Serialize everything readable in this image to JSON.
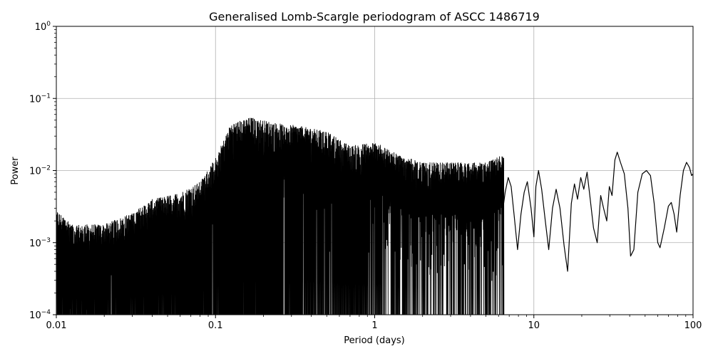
{
  "chart_data": {
    "type": "line",
    "title": "Generalised Lomb-Scargle periodogram of ASCC 1486719",
    "xlabel": "Period (days)",
    "ylabel": "Power",
    "x_scale": "log",
    "y_scale": "log",
    "xlim": [
      0.01,
      100
    ],
    "ylim": [
      0.0001,
      1
    ],
    "grid": true,
    "x_major_ticks": [
      {
        "value": 0.01,
        "label": "0.01"
      },
      {
        "value": 0.1,
        "label": "0.1"
      },
      {
        "value": 1,
        "label": "1"
      },
      {
        "value": 10,
        "label": "10"
      },
      {
        "value": 100,
        "label": "100"
      }
    ],
    "y_major_ticks": [
      {
        "value": 0.0001,
        "base": "10",
        "exp": "−4"
      },
      {
        "value": 0.001,
        "base": "10",
        "exp": "−3"
      },
      {
        "value": 0.01,
        "base": "10",
        "exp": "−2"
      },
      {
        "value": 0.1,
        "base": "10",
        "exp": "−1"
      },
      {
        "value": 1,
        "base": "10",
        "exp": "0"
      }
    ],
    "line_color": "#000000",
    "envelope": [
      {
        "period": 0.01,
        "max_power": 0.0028
      },
      {
        "period": 0.013,
        "max_power": 0.0018
      },
      {
        "period": 0.02,
        "max_power": 0.0018
      },
      {
        "period": 0.03,
        "max_power": 0.0026
      },
      {
        "period": 0.04,
        "max_power": 0.004
      },
      {
        "period": 0.06,
        "max_power": 0.005
      },
      {
        "period": 0.08,
        "max_power": 0.007
      },
      {
        "period": 0.1,
        "max_power": 0.015
      },
      {
        "period": 0.125,
        "max_power": 0.045
      },
      {
        "period": 0.167,
        "max_power": 0.055
      },
      {
        "period": 0.2,
        "max_power": 0.05
      },
      {
        "period": 0.25,
        "max_power": 0.045
      },
      {
        "period": 0.333,
        "max_power": 0.042
      },
      {
        "period": 0.5,
        "max_power": 0.035
      },
      {
        "period": 0.7,
        "max_power": 0.022
      },
      {
        "period": 1.0,
        "max_power": 0.025
      },
      {
        "period": 1.5,
        "max_power": 0.016
      },
      {
        "period": 2.0,
        "max_power": 0.013
      },
      {
        "period": 3.0,
        "max_power": 0.013
      },
      {
        "period": 5.0,
        "max_power": 0.013
      },
      {
        "period": 6.5,
        "max_power": 0.017
      }
    ],
    "series": [
      {
        "values_description_points": [
          [
            6.3,
            0.0023
          ],
          [
            6.6,
            0.005
          ],
          [
            6.9,
            0.008
          ],
          [
            7.2,
            0.006
          ],
          [
            7.5,
            0.0025
          ],
          [
            7.9,
            0.0008
          ],
          [
            8.3,
            0.0025
          ],
          [
            8.7,
            0.005
          ],
          [
            9.1,
            0.007
          ],
          [
            9.6,
            0.003
          ],
          [
            10.0,
            0.0012
          ],
          [
            10.3,
            0.006
          ],
          [
            10.7,
            0.01
          ],
          [
            11.2,
            0.0055
          ],
          [
            11.8,
            0.002
          ],
          [
            12.4,
            0.0008
          ],
          [
            13.1,
            0.003
          ],
          [
            13.8,
            0.0055
          ],
          [
            14.6,
            0.003
          ],
          [
            15.5,
            0.0009
          ],
          [
            16.3,
            0.0004
          ],
          [
            17.2,
            0.0035
          ],
          [
            18.0,
            0.0065
          ],
          [
            18.8,
            0.004
          ],
          [
            19.7,
            0.008
          ],
          [
            20.6,
            0.0055
          ],
          [
            21.6,
            0.0095
          ],
          [
            22.6,
            0.004
          ],
          [
            23.7,
            0.0016
          ],
          [
            25.0,
            0.001
          ],
          [
            26.3,
            0.0045
          ],
          [
            27.4,
            0.003
          ],
          [
            28.7,
            0.002
          ],
          [
            29.8,
            0.006
          ],
          [
            31.0,
            0.0045
          ],
          [
            32.3,
            0.014
          ],
          [
            33.4,
            0.018
          ],
          [
            35.0,
            0.013
          ],
          [
            37.0,
            0.009
          ],
          [
            39.0,
            0.003
          ],
          [
            40.5,
            0.00065
          ],
          [
            42.5,
            0.0008
          ],
          [
            45.0,
            0.005
          ],
          [
            48.0,
            0.009
          ],
          [
            51.0,
            0.01
          ],
          [
            54.0,
            0.0085
          ],
          [
            57.0,
            0.0035
          ],
          [
            60.0,
            0.001
          ],
          [
            62.0,
            0.00085
          ],
          [
            66.0,
            0.0016
          ],
          [
            70.0,
            0.0032
          ],
          [
            73.0,
            0.0036
          ],
          [
            76.0,
            0.0025
          ],
          [
            79.0,
            0.0014
          ],
          [
            83.0,
            0.0045
          ],
          [
            87.0,
            0.01
          ],
          [
            91.0,
            0.013
          ],
          [
            95.0,
            0.011
          ],
          [
            98.0,
            0.0085
          ],
          [
            100.0,
            0.009
          ]
        ]
      }
    ]
  }
}
